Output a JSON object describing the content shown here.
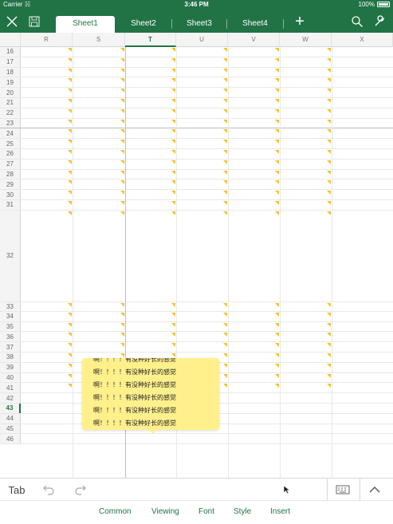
{
  "status_bar": {
    "carrier": "Carrier",
    "time": "3:46 PM",
    "battery": "100%"
  },
  "sheet_tabs": [
    "Sheet1",
    "Sheet2",
    "Sheet3",
    "Sheet4"
  ],
  "active_sheet": "Sheet1",
  "columns": [
    "R",
    "S",
    "T",
    "U",
    "V",
    "W",
    "X"
  ],
  "active_column": "T",
  "rows": [
    "16",
    "17",
    "18",
    "19",
    "20",
    "21",
    "22",
    "23",
    "24",
    "25",
    "26",
    "27",
    "28",
    "29",
    "30",
    "31",
    "32",
    "33",
    "34",
    "35",
    "36",
    "37",
    "38",
    "39",
    "40",
    "41",
    "42",
    "43",
    "44",
    "45",
    "46"
  ],
  "active_row": "43",
  "comment": {
    "lines": [
      "啊！！！！有没种好长的感觉",
      "啊！！！！有没种好长的感觉",
      "啊！！！！有没种好长的感觉",
      "啊！！！！有没种好长的感觉",
      "啊！！！！有没种好长的感觉",
      "啊！！！！有没种好长的感觉",
      "啊！！！！"
    ]
  },
  "toolbar": {
    "tab_label": "Tab"
  },
  "ribbon_tabs": [
    "Common",
    "Viewing",
    "Font",
    "Style",
    "Insert"
  ],
  "colors": {
    "accent": "#217346",
    "comment_fill": "#fff08c",
    "comment_marker": "#f2c12e"
  },
  "icons": [
    "close-icon",
    "save-icon",
    "plus-icon",
    "search-icon",
    "wrench-icon",
    "undo-icon",
    "redo-icon",
    "keyboard-icon",
    "chevron-up-icon"
  ]
}
